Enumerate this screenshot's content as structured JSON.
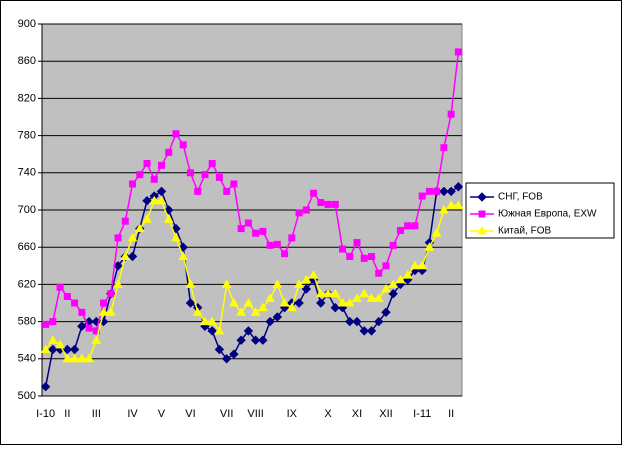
{
  "chart_data": {
    "type": "line",
    "categories": [
      "I-10",
      null,
      null,
      "II",
      null,
      null,
      null,
      "III",
      null,
      null,
      null,
      null,
      "IV",
      null,
      null,
      null,
      "V",
      null,
      null,
      null,
      "VI",
      null,
      null,
      null,
      null,
      "VII",
      null,
      null,
      null,
      "VIII",
      null,
      null,
      null,
      null,
      "IX",
      null,
      null,
      null,
      null,
      "X",
      null,
      null,
      null,
      "XI",
      null,
      null,
      null,
      "XII",
      null,
      null,
      null,
      null,
      "I-11",
      null,
      null,
      null,
      "II",
      null
    ],
    "series": [
      {
        "name": "СНГ, FOB",
        "color": "#000080",
        "marker": "diamond",
        "values": [
          510,
          550,
          550,
          550,
          550,
          575,
          580,
          580,
          580,
          610,
          640,
          650,
          650,
          680,
          710,
          715,
          720,
          700,
          680,
          660,
          600,
          595,
          575,
          570,
          550,
          540,
          545,
          560,
          570,
          560,
          560,
          580,
          585,
          595,
          600,
          600,
          615,
          625,
          600,
          610,
          595,
          595,
          580,
          580,
          570,
          570,
          580,
          590,
          610,
          620,
          625,
          635,
          635,
          665,
          720,
          720,
          720,
          725
        ]
      },
      {
        "name": "Южная Европа, EXW",
        "color": "#ff00ff",
        "marker": "square",
        "values": [
          577,
          580,
          617,
          607,
          600,
          590,
          573,
          570,
          600,
          610,
          670,
          688,
          728,
          738,
          750,
          733,
          748,
          762,
          782,
          770,
          740,
          720,
          738,
          750,
          735,
          720,
          728,
          680,
          686,
          675,
          677,
          662,
          663,
          653,
          670,
          697,
          700,
          718,
          708,
          706,
          706,
          658,
          650,
          665,
          648,
          650,
          632,
          640,
          662,
          678,
          683,
          683,
          715,
          720,
          720,
          767,
          803,
          870
        ]
      },
      {
        "name": "Китай, FOB",
        "color": "#ffff00",
        "marker": "triangle",
        "values": [
          550,
          560,
          555,
          540,
          540,
          540,
          540,
          560,
          590,
          590,
          620,
          650,
          670,
          680,
          690,
          710,
          710,
          690,
          670,
          650,
          620,
          590,
          580,
          580,
          570,
          620,
          600,
          590,
          600,
          590,
          595,
          605,
          620,
          600,
          595,
          620,
          625,
          630,
          610,
          610,
          610,
          600,
          600,
          605,
          610,
          605,
          605,
          615,
          620,
          625,
          630,
          640,
          640,
          660,
          675,
          700,
          705,
          705
        ]
      }
    ],
    "ylim": [
      500,
      900
    ],
    "yticks": [
      500,
      540,
      580,
      620,
      660,
      700,
      740,
      780,
      820,
      860,
      900
    ],
    "grid": true
  }
}
